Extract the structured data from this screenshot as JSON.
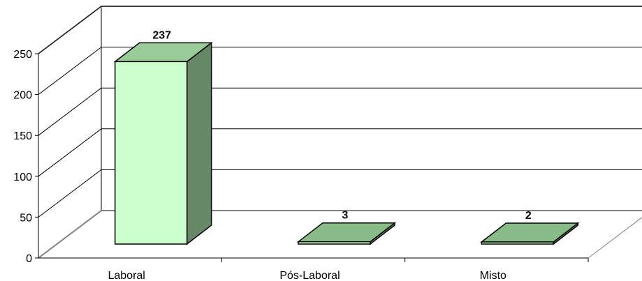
{
  "chart_data": {
    "type": "bar",
    "categories": [
      "Laboral",
      "Pós-Laboral",
      "Misto"
    ],
    "values": [
      237,
      3,
      2
    ],
    "title": "",
    "xlabel": "",
    "ylabel": "",
    "ylim": [
      0,
      250
    ],
    "yticks": [
      0,
      50,
      100,
      150,
      200,
      250
    ],
    "grid": true,
    "legend": "none",
    "three_d": true,
    "colors": {
      "front": "#ccffcc",
      "top": "#99cc99",
      "side": "#668866",
      "flat_top": "#88bb88",
      "grid": "#000000",
      "wall_border": "#808080"
    }
  }
}
